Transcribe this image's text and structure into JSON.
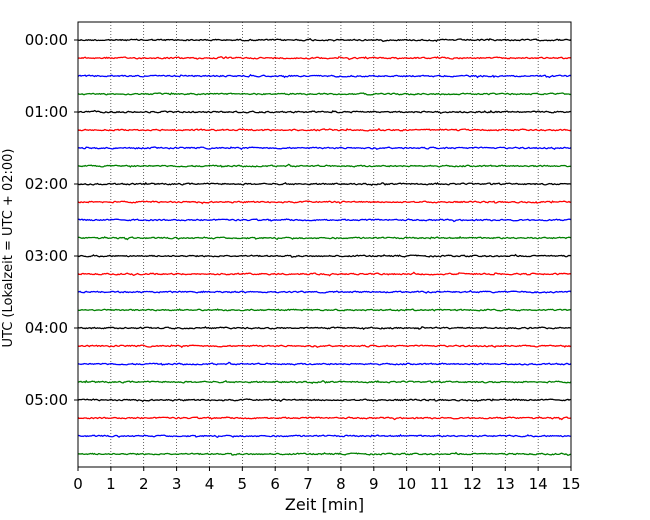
{
  "chart_data": {
    "type": "line",
    "title": "",
    "xlabel": "Zeit  [min]",
    "ylabel": "UTC (Lokalzeit = UTC + 02:00)",
    "xlim": [
      0,
      15
    ],
    "x_ticks": [
      "0",
      "1",
      "2",
      "3",
      "4",
      "5",
      "6",
      "7",
      "8",
      "9",
      "10",
      "11",
      "12",
      "13",
      "14",
      "15"
    ],
    "y_ticks": [
      "00:00",
      "01:00",
      "02:00",
      "03:00",
      "04:00",
      "05:00"
    ],
    "grid": "vertical dotted lines at each minute",
    "trace_colors": [
      "#000000",
      "#ff0000",
      "#0000ff",
      "#008000"
    ],
    "series": [
      {
        "start": "00:00",
        "color": "#000000"
      },
      {
        "start": "00:15",
        "color": "#ff0000"
      },
      {
        "start": "00:30",
        "color": "#0000ff"
      },
      {
        "start": "00:45",
        "color": "#008000"
      },
      {
        "start": "01:00",
        "color": "#000000"
      },
      {
        "start": "01:15",
        "color": "#ff0000"
      },
      {
        "start": "01:30",
        "color": "#0000ff"
      },
      {
        "start": "01:45",
        "color": "#008000"
      },
      {
        "start": "02:00",
        "color": "#000000"
      },
      {
        "start": "02:15",
        "color": "#ff0000"
      },
      {
        "start": "02:30",
        "color": "#0000ff"
      },
      {
        "start": "02:45",
        "color": "#008000"
      },
      {
        "start": "03:00",
        "color": "#000000"
      },
      {
        "start": "03:15",
        "color": "#ff0000"
      },
      {
        "start": "03:30",
        "color": "#0000ff"
      },
      {
        "start": "03:45",
        "color": "#008000"
      },
      {
        "start": "04:00",
        "color": "#000000"
      },
      {
        "start": "04:15",
        "color": "#ff0000"
      },
      {
        "start": "04:30",
        "color": "#0000ff"
      },
      {
        "start": "04:45",
        "color": "#008000"
      },
      {
        "start": "05:00",
        "color": "#000000"
      },
      {
        "start": "05:15",
        "color": "#ff0000"
      },
      {
        "start": "05:30",
        "color": "#0000ff"
      },
      {
        "start": "05:45",
        "color": "#008000"
      }
    ]
  }
}
